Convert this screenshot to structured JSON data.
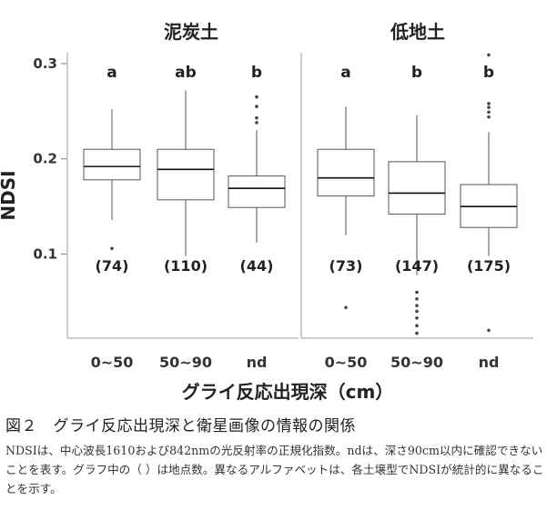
{
  "chart_data": {
    "type": "box",
    "ylabel": "NDSI",
    "xlabel": "グライ反応出現深（cm）",
    "ylim": [
      0.02,
      0.31
    ],
    "yticks": [
      "0.1",
      "0.2",
      "0.3"
    ],
    "ytick_values": [
      0.1,
      0.2,
      0.3
    ],
    "panels": [
      {
        "title": "泥炭土",
        "categories": [
          "0~50",
          "50~90",
          "nd"
        ],
        "boxes": [
          {
            "category": "0~50",
            "low": 0.136,
            "q1": 0.178,
            "median": 0.192,
            "q3": 0.21,
            "high": 0.252,
            "sig": "a",
            "n": "(74)",
            "outliers": [
              0.106
            ]
          },
          {
            "category": "50~90",
            "low": 0.098,
            "q1": 0.157,
            "median": 0.189,
            "q3": 0.21,
            "high": 0.272,
            "sig": "ab",
            "n": "(110)",
            "outliers": []
          },
          {
            "category": "nd",
            "low": 0.112,
            "q1": 0.149,
            "median": 0.169,
            "q3": 0.182,
            "high": 0.23,
            "sig": "b",
            "n": "(44)",
            "outliers": [
              0.238,
              0.243,
              0.255,
              0.265
            ]
          }
        ]
      },
      {
        "title": "低地土",
        "categories": [
          "0~50",
          "50~90",
          "nd"
        ],
        "boxes": [
          {
            "category": "0~50",
            "low": 0.12,
            "q1": 0.161,
            "median": 0.18,
            "q3": 0.21,
            "high": 0.255,
            "sig": "a",
            "n": "(73)",
            "outliers": [
              0.044
            ]
          },
          {
            "category": "50~90",
            "low": 0.078,
            "q1": 0.142,
            "median": 0.164,
            "q3": 0.197,
            "high": 0.246,
            "sig": "b",
            "n": "(147)",
            "outliers": [
              0.017,
              0.025,
              0.033,
              0.04,
              0.046,
              0.053,
              0.06
            ]
          },
          {
            "category": "nd",
            "low": 0.098,
            "q1": 0.128,
            "median": 0.15,
            "q3": 0.173,
            "high": 0.228,
            "sig": "b",
            "n": "(175)",
            "outliers": [
              0.02,
              0.244,
              0.249,
              0.254,
              0.258,
              0.309
            ]
          }
        ]
      }
    ],
    "grid": false,
    "legend": "none"
  },
  "caption": {
    "figure": "図２　グライ反応出現深と衛星画像の情報の関係",
    "note": "NDSIは、中心波長1610および842nmの光反射率の正規化指数。ndは、深さ90cm以内に確認できないことを表す。グラフ中の（ ）は地点数。異なるアルファベットは、各土壌型でNDSIが統計的に異なることを示す。"
  }
}
